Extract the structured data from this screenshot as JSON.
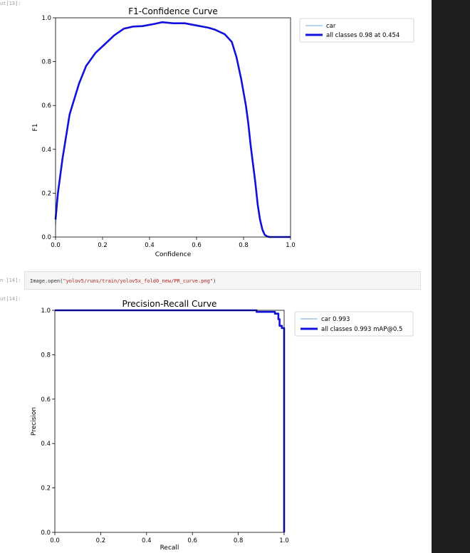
{
  "notebook": {
    "out13_prompt": "ut[13]:",
    "in14_prompt": "n [14]:",
    "out14_prompt": "ut[14]:",
    "code": {
      "prefix": "Image.open(",
      "string": "\"yolov5/runs/train/yolov5x_fold0_new/PR_curve.png\"",
      "suffix": ")"
    }
  },
  "colors": {
    "car_series": "#6fa8dc",
    "all_classes_series": "#1111dd",
    "right_panel": "#1e1e1e"
  },
  "chart_data": [
    {
      "type": "line",
      "title": "F1-Confidence Curve",
      "xlabel": "Confidence",
      "ylabel": "F1",
      "xlim": [
        0,
        1
      ],
      "ylim": [
        0,
        1
      ],
      "x_ticks": [
        "0.0",
        "0.2",
        "0.4",
        "0.6",
        "0.8",
        "1.0"
      ],
      "y_ticks": [
        "0.0",
        "0.2",
        "0.4",
        "0.6",
        "0.8",
        "1.0"
      ],
      "grid": false,
      "legend_position": "outside-right-top",
      "series": [
        {
          "name": "car",
          "x": [
            0,
            0.01,
            0.03,
            0.06,
            0.1,
            0.13,
            0.17,
            0.21,
            0.25,
            0.29,
            0.33,
            0.37,
            0.42,
            0.45,
            0.5,
            0.55,
            0.6,
            0.65,
            0.68,
            0.72,
            0.75,
            0.77,
            0.79,
            0.81,
            0.82,
            0.83,
            0.85,
            0.86,
            0.87,
            0.88,
            0.89,
            0.9,
            0.91,
            1
          ],
          "y": [
            0.05,
            0.18,
            0.35,
            0.55,
            0.7,
            0.78,
            0.84,
            0.88,
            0.92,
            0.95,
            0.96,
            0.962,
            0.97,
            0.98,
            0.975,
            0.975,
            0.965,
            0.955,
            0.945,
            0.925,
            0.89,
            0.82,
            0.72,
            0.6,
            0.52,
            0.42,
            0.25,
            0.15,
            0.07,
            0.025,
            0.01,
            0.003,
            0,
            0
          ]
        },
        {
          "name": "all classes 0.98 at 0.454",
          "x": [
            0,
            0.01,
            0.03,
            0.06,
            0.1,
            0.13,
            0.17,
            0.21,
            0.25,
            0.29,
            0.33,
            0.37,
            0.42,
            0.454,
            0.5,
            0.55,
            0.6,
            0.65,
            0.68,
            0.72,
            0.75,
            0.77,
            0.79,
            0.81,
            0.82,
            0.83,
            0.85,
            0.86,
            0.87,
            0.88,
            0.89,
            0.9,
            0.91,
            1
          ],
          "y": [
            0.08,
            0.2,
            0.36,
            0.56,
            0.7,
            0.78,
            0.84,
            0.88,
            0.92,
            0.95,
            0.96,
            0.962,
            0.972,
            0.98,
            0.975,
            0.975,
            0.965,
            0.955,
            0.945,
            0.925,
            0.89,
            0.82,
            0.72,
            0.6,
            0.52,
            0.42,
            0.25,
            0.15,
            0.08,
            0.035,
            0.01,
            0.003,
            0,
            0
          ]
        }
      ]
    },
    {
      "type": "line",
      "title": "Precision-Recall Curve",
      "xlabel": "Recall",
      "ylabel": "Precision",
      "xlim": [
        0,
        1
      ],
      "ylim": [
        0,
        1
      ],
      "x_ticks": [
        "0.0",
        "0.2",
        "0.4",
        "0.6",
        "0.8",
        "1.0"
      ],
      "y_ticks": [
        "0.0",
        "0.2",
        "0.4",
        "0.6",
        "0.8",
        "1.0"
      ],
      "grid": false,
      "legend_position": "outside-right-top",
      "series": [
        {
          "name": "car 0.993",
          "x": [
            0,
            0.5,
            0.88,
            0.88,
            0.96,
            0.96,
            0.975,
            0.975,
            0.98,
            0.98,
            0.99,
            0.99,
            1,
            1
          ],
          "y": [
            1,
            1,
            1,
            0.993,
            0.993,
            0.985,
            0.985,
            0.96,
            0.96,
            0.93,
            0.93,
            0.92,
            0.92,
            0
          ]
        },
        {
          "name": "all classes 0.993 mAP@0.5",
          "x": [
            0,
            0.5,
            0.88,
            0.88,
            0.96,
            0.96,
            0.975,
            0.975,
            0.98,
            0.98,
            0.99,
            0.99,
            1,
            1
          ],
          "y": [
            1,
            1,
            1,
            0.993,
            0.993,
            0.985,
            0.985,
            0.96,
            0.96,
            0.93,
            0.93,
            0.92,
            0.92,
            0
          ]
        }
      ]
    }
  ]
}
